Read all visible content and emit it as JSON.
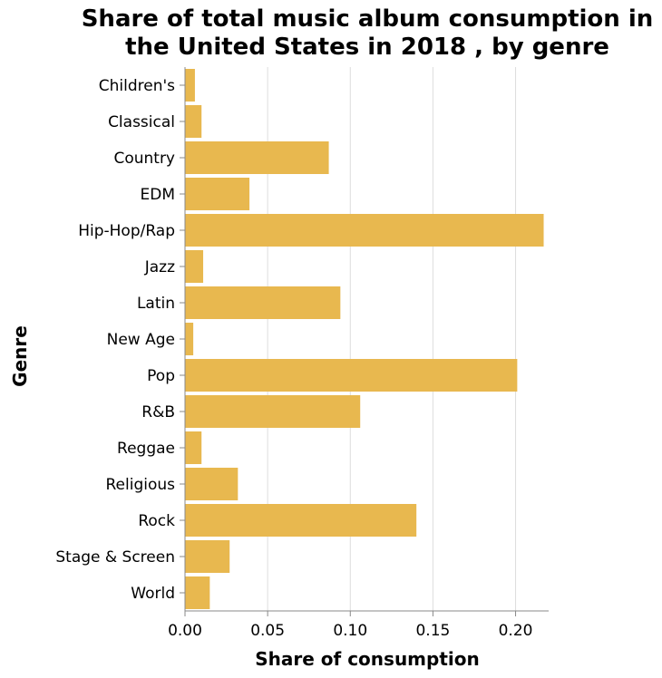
{
  "chart_data": {
    "type": "bar",
    "orientation": "horizontal",
    "title": [
      "Share of total music album consumption in",
      "the United States in 2018 , by genre"
    ],
    "xlabel": "Share of consumption",
    "ylabel": "Genre",
    "xlim": [
      0,
      0.22
    ],
    "xticks": [
      "0.00",
      "0.05",
      "0.10",
      "0.15",
      "0.20"
    ],
    "xtick_values": [
      0,
      0.05,
      0.1,
      0.15,
      0.2
    ],
    "grid": true,
    "bar_color": "#e8b84f",
    "categories": [
      "Children's",
      "Classical",
      "Country",
      "EDM",
      "Hip-Hop/Rap",
      "Jazz",
      "Latin",
      "New Age",
      "Pop",
      "R&B",
      "Reggae",
      "Religious",
      "Rock",
      "Stage & Screen",
      "World"
    ],
    "values": [
      0.006,
      0.01,
      0.087,
      0.039,
      0.217,
      0.011,
      0.094,
      0.005,
      0.201,
      0.106,
      0.01,
      0.032,
      0.14,
      0.027,
      0.015
    ]
  }
}
